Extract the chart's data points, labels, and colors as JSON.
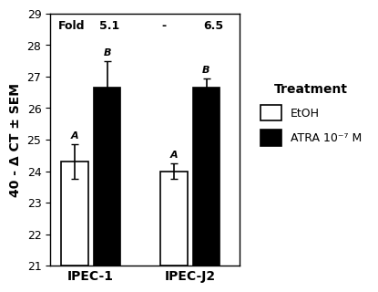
{
  "groups": [
    "IPEC-1",
    "IPEC-J2"
  ],
  "bar_values": [
    [
      24.3,
      26.65
    ],
    [
      24.0,
      26.65
    ]
  ],
  "bar_errors": [
    [
      0.55,
      0.85
    ],
    [
      0.25,
      0.3
    ]
  ],
  "bar_colors": [
    "white",
    "black"
  ],
  "bar_edge_color": "black",
  "bar_width": 0.3,
  "group_centers": [
    1.0,
    2.1
  ],
  "bar_offsets": [
    -0.18,
    0.18
  ],
  "ylim": [
    21,
    29
  ],
  "yticks": [
    21,
    22,
    23,
    24,
    25,
    26,
    27,
    28,
    29
  ],
  "ylabel": "40 - Δ CT ± SEM",
  "legend_title": "Treatment",
  "legend_labels": [
    "EtOH",
    "ATRA 10⁻⁷ M"
  ],
  "letter_labels": [
    [
      "A",
      "B"
    ],
    [
      "A",
      "B"
    ]
  ],
  "background_color": "white",
  "capsize": 3,
  "errorbar_linewidth": 1.2,
  "fold_label": "Fold",
  "fold_val1": "5.1",
  "fold_sep": "-",
  "fold_val2": "6.5"
}
